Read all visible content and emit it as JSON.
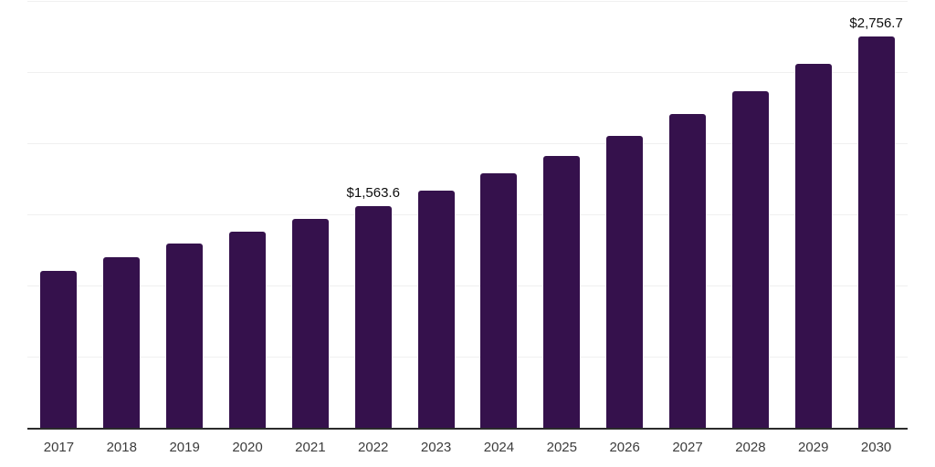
{
  "chart_data": {
    "type": "bar",
    "title": "",
    "xlabel": "",
    "ylabel": "",
    "categories": [
      "2017",
      "2018",
      "2019",
      "2020",
      "2021",
      "2022",
      "2023",
      "2024",
      "2025",
      "2026",
      "2027",
      "2028",
      "2029",
      "2030"
    ],
    "values": [
      1110,
      1208,
      1300,
      1388,
      1475,
      1563.6,
      1675,
      1792,
      1915,
      2055,
      2210,
      2375,
      2565,
      2756.7
    ],
    "data_labels": [
      null,
      null,
      null,
      null,
      null,
      "$1,563.6",
      null,
      null,
      null,
      null,
      null,
      null,
      null,
      "$2,756.7"
    ],
    "ylim": [
      0,
      3000
    ],
    "grid_step": 500,
    "grid": true,
    "legend": false,
    "bar_color": "#35114C",
    "grid_color": "#f0f0f0",
    "axis_color": "#2b2b2b",
    "data_label_color": "#0d0d0d",
    "tick_label_color": "#3c3c3c"
  }
}
